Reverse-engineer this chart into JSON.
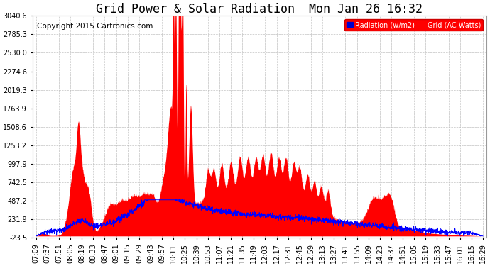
{
  "title": "Grid Power & Solar Radiation  Mon Jan 26 16:32",
  "copyright": "Copyright 2015 Cartronics.com",
  "background_color": "#ffffff",
  "plot_bg_color": "#ffffff",
  "grid_color": "#bbbbbb",
  "legend_labels": [
    "Radiation (w/m2)",
    "Grid (AC Watts)"
  ],
  "legend_colors": [
    "#0000ff",
    "#ff0000"
  ],
  "legend_bg": "#ff0000",
  "ymin": -23.5,
  "ymax": 3040.6,
  "yticks": [
    -23.5,
    231.9,
    487.2,
    742.5,
    997.9,
    1253.2,
    1508.6,
    1763.9,
    2019.3,
    2274.6,
    2530.0,
    2785.3,
    3040.6
  ],
  "xtick_labels": [
    "07:09",
    "07:37",
    "07:51",
    "08:05",
    "08:19",
    "08:33",
    "08:47",
    "09:01",
    "09:15",
    "09:29",
    "09:43",
    "09:57",
    "10:11",
    "10:25",
    "10:39",
    "10:53",
    "11:07",
    "11:21",
    "11:35",
    "11:49",
    "12:03",
    "12:17",
    "12:31",
    "12:45",
    "12:59",
    "13:13",
    "13:27",
    "13:41",
    "13:55",
    "14:09",
    "14:23",
    "14:37",
    "14:51",
    "15:05",
    "15:19",
    "15:33",
    "15:47",
    "16:01",
    "16:15",
    "16:29"
  ],
  "red_fill_color": "#ff0000",
  "blue_line_color": "#0000ff",
  "title_fontsize": 12,
  "tick_fontsize": 7,
  "copyright_fontsize": 7.5
}
